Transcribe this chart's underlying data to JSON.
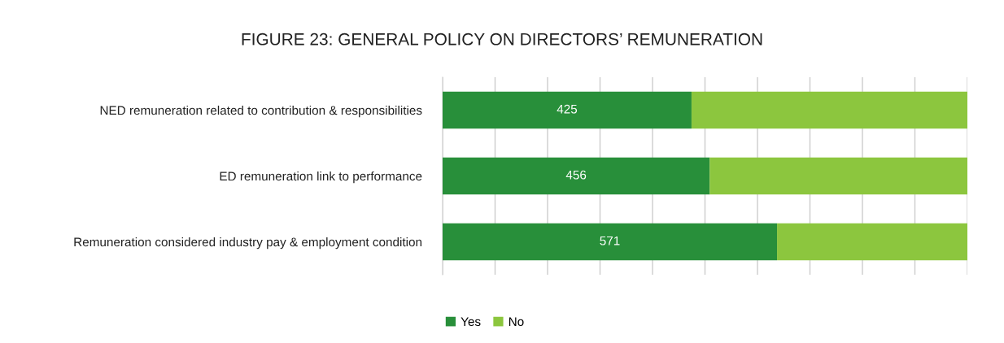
{
  "chart_data": {
    "type": "bar",
    "orientation": "horizontal",
    "stacked": true,
    "title": "FIGURE 23: GENERAL POLICY ON DIRECTORS’ REMUNERATION",
    "categories": [
      "NED remuneration related to contribution & responsibilities",
      "ED remuneration link to performance",
      "Remuneration considered industry pay & employment condition"
    ],
    "series": [
      {
        "name": "Yes",
        "color": "#288f3a",
        "values": [
          425,
          456,
          571
        ],
        "value_labels": [
          "425",
          "456",
          "571"
        ]
      },
      {
        "name": "No",
        "color": "#8cc63e",
        "values": [
          471,
          440,
          325
        ]
      }
    ],
    "xlim": [
      0,
      896
    ],
    "xticks": [
      {
        "value": 0,
        "label": null
      },
      {
        "value": 89.6,
        "label": null
      },
      {
        "value": 179.2,
        "label": null
      },
      {
        "value": 268.8,
        "label": null
      },
      {
        "value": 358.4,
        "label": null
      },
      {
        "value": 448,
        "label": null
      },
      {
        "value": 537.6,
        "label": null
      },
      {
        "value": 627.2,
        "label": null
      },
      {
        "value": 716.8,
        "label": null
      },
      {
        "value": 806.4,
        "label": null
      },
      {
        "value": 896,
        "label": null
      }
    ],
    "grid": "x",
    "legend": "bottom",
    "tick_labels": "y"
  }
}
